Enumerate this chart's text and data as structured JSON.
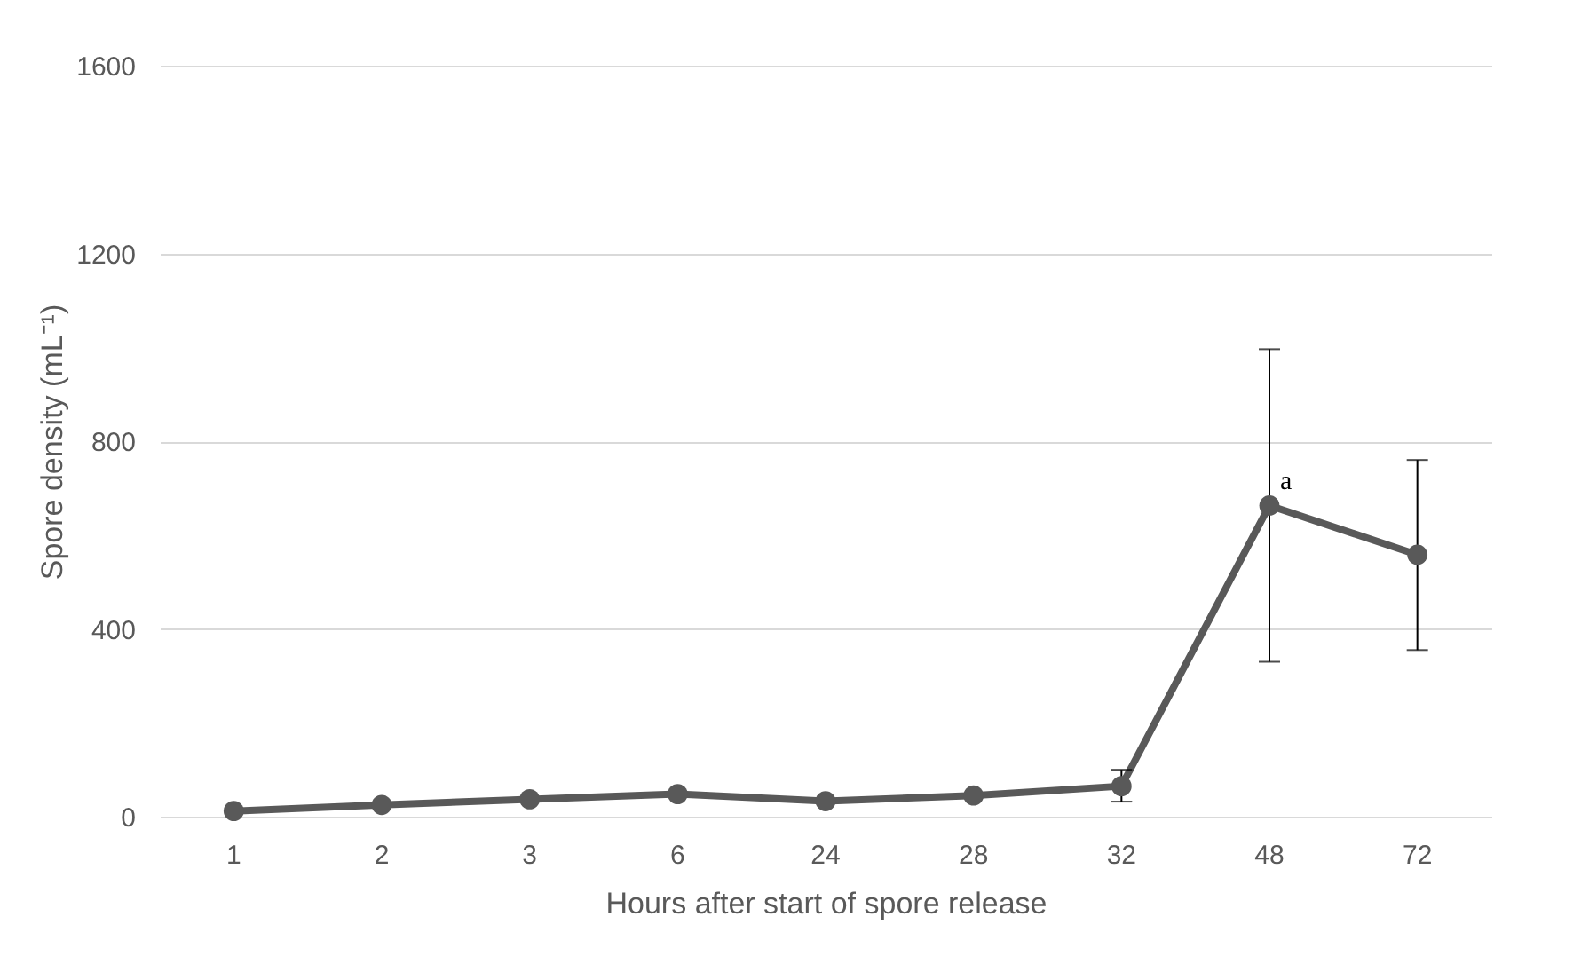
{
  "chart_data": {
    "type": "line",
    "xlabel": "Hours after start of spore release",
    "ylabel": "Spore density (mL⁻¹)",
    "categories": [
      "1",
      "2",
      "3",
      "6",
      "24",
      "28",
      "32",
      "48",
      "72"
    ],
    "series": [
      {
        "color": "#595959",
        "values": [
          12,
          25,
          37,
          48,
          33,
          45,
          65,
          663,
          558
        ],
        "errors": [
          null,
          null,
          null,
          null,
          null,
          null,
          [
            32,
            100
          ],
          [
            330,
            996
          ],
          [
            355,
            760
          ]
        ]
      }
    ],
    "ylim": [
      0,
      1600
    ],
    "yticks": [
      0,
      400,
      800,
      1200,
      1600
    ],
    "grid": "y",
    "marker": "circle",
    "line_style": "solid",
    "annotations": [
      {
        "text": "a",
        "x": "48",
        "y": 663
      }
    ]
  }
}
